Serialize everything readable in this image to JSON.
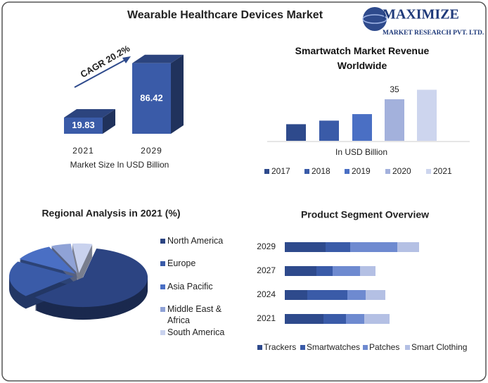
{
  "logo": {
    "name": "MAXIMIZE",
    "tagline": "MARKET RESEARCH PVT. LTD."
  },
  "chart_data": [
    {
      "type": "bar",
      "style": "3d",
      "title": "Wearable Healthcare Devices Market",
      "annotation": "CAGR 20.2%",
      "x_label": "Market Size In USD Billion",
      "categories": [
        "2021",
        "2029"
      ],
      "values": [
        19.83,
        86.42
      ],
      "color": "#3a5ba8"
    },
    {
      "type": "bar",
      "style": "flat",
      "title": "Smartwatch Market Revenue Worldwide",
      "x_label": "In USD Billion",
      "categories": [
        "2017",
        "2018",
        "2019",
        "2020",
        "2021"
      ],
      "values": [
        14,
        17,
        22.5,
        35,
        43
      ],
      "value_labels": [
        null,
        null,
        null,
        "35",
        null
      ],
      "colors": [
        "#2e4a8c",
        "#3a5ba8",
        "#4a6fc4",
        "#a3b1dc",
        "#cdd5ee"
      ],
      "legend": "bottom"
    },
    {
      "type": "pie",
      "style": "3d",
      "title": "Regional Analysis in 2021 (%)",
      "categories": [
        "North America",
        "Europe",
        "Asia Pacific",
        "Middle East & Africa",
        "South America"
      ],
      "values": [
        60,
        20,
        10,
        5,
        5
      ],
      "colors": [
        "#2c4482",
        "#3a5ba8",
        "#4a6fc4",
        "#8fa2d6",
        "#c9d2ee"
      ],
      "legend": "right"
    },
    {
      "type": "barh",
      "stacked": true,
      "title": "Product Segment Overview",
      "categories": [
        "2021",
        "2024",
        "2027",
        "2029"
      ],
      "series": [
        {
          "name": "Trackers",
          "color": "#2e4a8c",
          "values": [
            55,
            32,
            45,
            58
          ]
        },
        {
          "name": "Smartwatches",
          "color": "#3a5ba8",
          "values": [
            32,
            57,
            23,
            35
          ]
        },
        {
          "name": "Patches",
          "color": "#6e8ad0",
          "values": [
            26,
            26,
            39,
            67
          ]
        },
        {
          "name": "Smart Clothing",
          "color": "#b4c0e4",
          "values": [
            36,
            28,
            22,
            31
          ]
        }
      ],
      "legend": "bottom"
    }
  ]
}
